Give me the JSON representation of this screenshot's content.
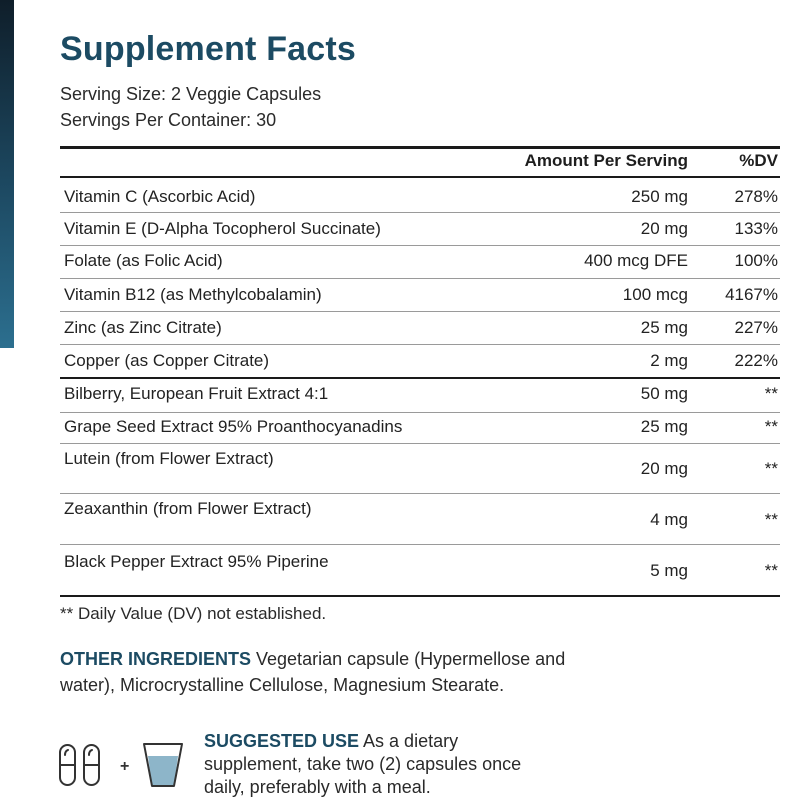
{
  "header": {
    "title": "Supplement Facts",
    "serving_size": "Serving Size: 2 Veggie Capsules",
    "servings_per_container": "Servings Per Container: 30"
  },
  "table": {
    "columns": {
      "amount": "Amount Per Serving",
      "dv": "%DV"
    },
    "rows": [
      {
        "name": "Vitamin C (Ascorbic Acid)",
        "amount": "250 mg",
        "dv": "278%"
      },
      {
        "name": "Vitamin E (D-Alpha Tocopherol Succinate)",
        "amount": "20 mg",
        "dv": "133%"
      },
      {
        "name": "Folate (as Folic Acid)",
        "amount": "400 mcg DFE",
        "dv": "100%"
      },
      {
        "name": "Vitamin B12 (as Methylcobalamin)",
        "amount": "100 mcg",
        "dv": "4167%"
      },
      {
        "name": "Zinc (as Zinc Citrate)",
        "amount": "25 mg",
        "dv": "227%"
      },
      {
        "name": "Copper (as Copper Citrate)",
        "amount": "2 mg",
        "dv": "222%"
      },
      {
        "name": "Bilberry, European Fruit Extract 4:1",
        "amount": "50 mg",
        "dv": "**"
      },
      {
        "name": "Grape Seed Extract 95% Proanthocyanadins",
        "amount": "25 mg",
        "dv": "**"
      },
      {
        "name": "Lutein (from Flower Extract)",
        "amount": "20 mg",
        "dv": "**"
      },
      {
        "name": "Zeaxanthin (from Flower Extract)",
        "amount": "4 mg",
        "dv": "**"
      },
      {
        "name": "Black Pepper Extract  95% Piperine",
        "amount": "5 mg",
        "dv": "**"
      }
    ]
  },
  "footnote": "** Daily Value (DV) not established.",
  "other_ingredients": {
    "label": "OTHER INGREDIENTS",
    "text": " Vegetarian capsule (Hypermellose and water), Microcrystalline Cellulose, Magnesium Stearate."
  },
  "suggested_use": {
    "label": "SUGGESTED USE",
    "text": " As a dietary supplement, take two (2) capsules once daily, preferably with a meal."
  },
  "icons": {
    "capsule": "capsule-icon",
    "plus": "+",
    "glass": "water-glass-icon",
    "water_color": "#8db5c9",
    "accent_color": "#1c4b63"
  }
}
